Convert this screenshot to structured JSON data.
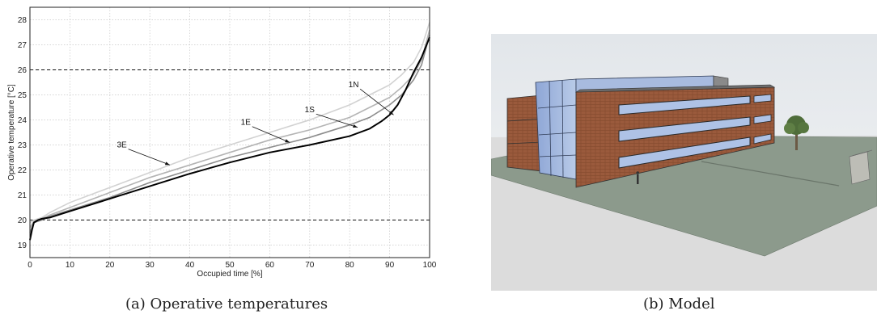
{
  "figure_a": {
    "caption": "(a) Operative temperatures"
  },
  "figure_b": {
    "caption": "(b) Model"
  },
  "chart_data": {
    "type": "line",
    "xlabel": "Occupied time [%]",
    "ylabel": "Operative temperature [°C]",
    "xlim": [
      0,
      100
    ],
    "ylim": [
      18.5,
      28.5
    ],
    "xticks": [
      0,
      10,
      20,
      30,
      40,
      50,
      60,
      70,
      80,
      90,
      100
    ],
    "yticks": [
      19,
      20,
      21,
      22,
      23,
      24,
      25,
      26,
      27,
      28
    ],
    "grid": true,
    "reference_lines": [
      20,
      26
    ],
    "series": [
      {
        "name": "3E",
        "color": "#d2d2d2",
        "x": [
          0,
          1,
          3,
          5,
          10,
          20,
          30,
          40,
          50,
          60,
          70,
          80,
          85,
          90,
          93,
          96,
          98,
          100
        ],
        "y": [
          19.9,
          20.0,
          20.1,
          20.3,
          20.7,
          21.3,
          21.9,
          22.5,
          23.0,
          23.5,
          24.0,
          24.6,
          25.0,
          25.4,
          25.8,
          26.3,
          26.9,
          27.9
        ]
      },
      {
        "name": "1E",
        "color": "#b4b4b4",
        "x": [
          0,
          1,
          3,
          5,
          10,
          20,
          30,
          40,
          50,
          60,
          70,
          80,
          85,
          90,
          93,
          96,
          98,
          100
        ],
        "y": [
          19.7,
          19.95,
          20.05,
          20.2,
          20.5,
          21.1,
          21.7,
          22.2,
          22.7,
          23.2,
          23.6,
          24.1,
          24.5,
          24.9,
          25.3,
          25.8,
          26.4,
          27.6
        ]
      },
      {
        "name": "1S",
        "color": "#8c8c8c",
        "x": [
          0,
          1,
          3,
          5,
          10,
          20,
          30,
          40,
          50,
          60,
          70,
          80,
          85,
          90,
          93,
          96,
          98,
          100
        ],
        "y": [
          19.5,
          19.9,
          20.0,
          20.15,
          20.4,
          20.9,
          21.5,
          22.0,
          22.5,
          22.9,
          23.3,
          23.8,
          24.1,
          24.6,
          25.0,
          25.6,
          26.2,
          27.4
        ]
      },
      {
        "name": "1N",
        "color": "#000000",
        "x": [
          0,
          0.5,
          1,
          2,
          3,
          5,
          10,
          20,
          30,
          40,
          50,
          60,
          70,
          80,
          85,
          88,
          90,
          92,
          94,
          96,
          98,
          100
        ],
        "y": [
          19.2,
          19.6,
          19.9,
          20.0,
          20.05,
          20.1,
          20.35,
          20.85,
          21.35,
          21.85,
          22.3,
          22.7,
          23.0,
          23.35,
          23.65,
          23.95,
          24.2,
          24.6,
          25.2,
          25.9,
          26.5,
          27.3
        ]
      }
    ],
    "annotations": [
      {
        "label": "1N",
        "text_at": [
          81,
          25.3
        ],
        "arrow_to": [
          91,
          24.2
        ]
      },
      {
        "label": "1S",
        "text_at": [
          70,
          24.3
        ],
        "arrow_to": [
          82,
          23.7
        ]
      },
      {
        "label": "1E",
        "text_at": [
          54,
          23.8
        ],
        "arrow_to": [
          65,
          23.1
        ]
      },
      {
        "label": "3E",
        "text_at": [
          23,
          22.9
        ],
        "arrow_to": [
          35,
          22.2
        ]
      }
    ]
  }
}
